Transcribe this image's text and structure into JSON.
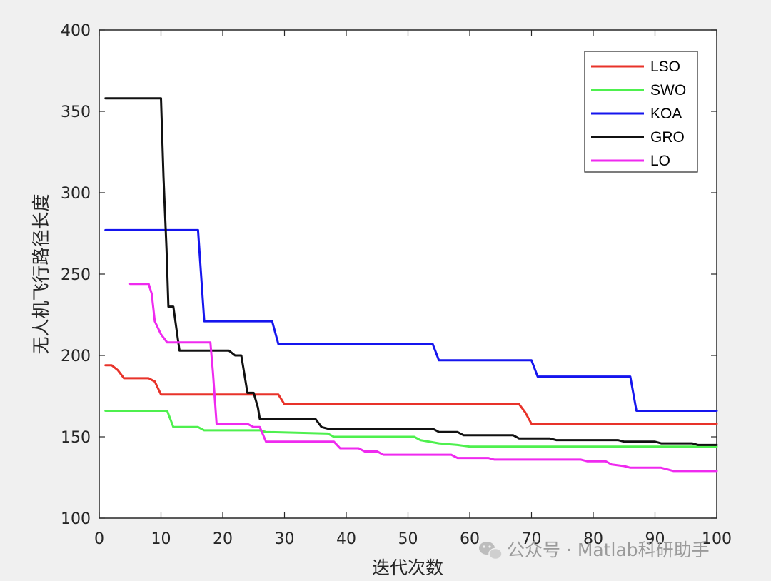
{
  "chart_data": {
    "type": "line",
    "title": "",
    "xlabel": "迭代次数",
    "ylabel": "无人机飞行路径长度",
    "xlim": [
      0,
      100
    ],
    "ylim": [
      100,
      400
    ],
    "xticks": [
      "0",
      "10",
      "20",
      "30",
      "40",
      "50",
      "60",
      "70",
      "80",
      "90",
      "100"
    ],
    "yticks": [
      "100",
      "150",
      "200",
      "250",
      "300",
      "350",
      "400"
    ],
    "grid": false,
    "legend_position": "top-right",
    "series": [
      {
        "name": "LSO",
        "color": "#e8332a",
        "points": [
          [
            1,
            194
          ],
          [
            2,
            194
          ],
          [
            3,
            191
          ],
          [
            4,
            186
          ],
          [
            8,
            186
          ],
          [
            9,
            184
          ],
          [
            10,
            176
          ],
          [
            28,
            176
          ],
          [
            29,
            176
          ],
          [
            30,
            170
          ],
          [
            68,
            170
          ],
          [
            69,
            165
          ],
          [
            70,
            158
          ],
          [
            100,
            158
          ]
        ]
      },
      {
        "name": "SWO",
        "color": "#4ef04e",
        "points": [
          [
            1,
            166
          ],
          [
            11,
            166
          ],
          [
            12,
            156
          ],
          [
            16,
            156
          ],
          [
            17,
            154
          ],
          [
            26,
            154
          ],
          [
            27,
            153
          ],
          [
            37,
            152
          ],
          [
            38,
            150
          ],
          [
            51,
            150
          ],
          [
            52,
            148
          ],
          [
            55,
            146
          ],
          [
            58,
            145
          ],
          [
            60,
            144
          ],
          [
            100,
            144
          ]
        ]
      },
      {
        "name": "KOA",
        "color": "#1515ee",
        "points": [
          [
            1,
            277
          ],
          [
            16,
            277
          ],
          [
            17,
            221
          ],
          [
            28,
            221
          ],
          [
            29,
            207
          ],
          [
            54,
            207
          ],
          [
            55,
            197
          ],
          [
            70,
            197
          ],
          [
            71,
            187
          ],
          [
            86,
            187
          ],
          [
            87,
            166
          ],
          [
            100,
            166
          ]
        ]
      },
      {
        "name": "GRO",
        "color": "#111111",
        "points": [
          [
            1,
            358
          ],
          [
            10,
            358
          ],
          [
            10.4,
            310
          ],
          [
            10.9,
            265
          ],
          [
            11.2,
            230
          ],
          [
            12,
            230
          ],
          [
            13,
            203
          ],
          [
            21,
            203
          ],
          [
            22,
            200
          ],
          [
            23,
            200
          ],
          [
            24,
            177
          ],
          [
            25,
            177
          ],
          [
            25.7,
            168
          ],
          [
            26,
            161
          ],
          [
            35,
            161
          ],
          [
            36,
            156
          ],
          [
            37,
            155
          ],
          [
            54,
            155
          ],
          [
            55,
            153
          ],
          [
            58,
            153
          ],
          [
            59,
            151
          ],
          [
            67,
            151
          ],
          [
            68,
            149
          ],
          [
            73,
            149
          ],
          [
            74,
            148
          ],
          [
            84,
            148
          ],
          [
            85,
            147
          ],
          [
            90,
            147
          ],
          [
            91,
            146
          ],
          [
            96,
            146
          ],
          [
            97,
            145
          ],
          [
            100,
            145
          ]
        ]
      },
      {
        "name": "LO",
        "color": "#ef2aef",
        "points": [
          [
            5,
            244
          ],
          [
            8,
            244
          ],
          [
            8.5,
            238
          ],
          [
            9,
            221
          ],
          [
            10,
            213
          ],
          [
            11,
            208
          ],
          [
            18,
            208
          ],
          [
            18.4,
            190
          ],
          [
            19,
            158
          ],
          [
            24,
            158
          ],
          [
            25,
            156
          ],
          [
            26,
            156
          ],
          [
            27,
            147
          ],
          [
            38,
            147
          ],
          [
            39,
            143
          ],
          [
            42,
            143
          ],
          [
            43,
            141
          ],
          [
            45,
            141
          ],
          [
            46,
            139
          ],
          [
            57,
            139
          ],
          [
            58,
            137
          ],
          [
            63,
            137
          ],
          [
            64,
            136
          ],
          [
            78,
            136
          ],
          [
            79,
            135
          ],
          [
            82,
            135
          ],
          [
            83,
            133
          ],
          [
            85,
            132
          ],
          [
            86,
            131
          ],
          [
            91,
            131
          ],
          [
            92,
            130
          ],
          [
            93,
            129
          ],
          [
            100,
            129
          ]
        ]
      }
    ]
  },
  "watermark": {
    "text": "公众号 · Matlab科研助手",
    "icon": "wechat-icon"
  }
}
